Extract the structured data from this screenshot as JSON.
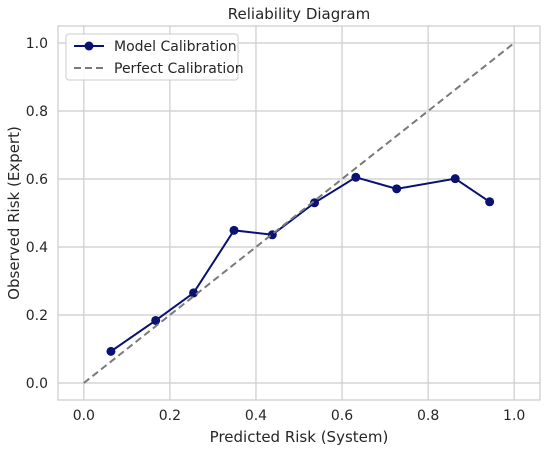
{
  "chart_data": {
    "type": "line",
    "title": "Reliability Diagram",
    "xlabel": "Predicted Risk (System)",
    "ylabel": "Observed Risk (Expert)",
    "xlim": [
      -0.06,
      1.06
    ],
    "ylim": [
      -0.05,
      1.05
    ],
    "xticks": [
      0.0,
      0.2,
      0.4,
      0.6,
      0.8,
      1.0
    ],
    "yticks": [
      0.0,
      0.2,
      0.4,
      0.6,
      0.8,
      1.0
    ],
    "xtick_labels": [
      "0.0",
      "0.2",
      "0.4",
      "0.6",
      "0.8",
      "1.0"
    ],
    "ytick_labels": [
      "0.0",
      "0.2",
      "0.4",
      "0.6",
      "0.8",
      "1.0"
    ],
    "grid": true,
    "legend_position": "top-left",
    "series": [
      {
        "name": "Model Calibration",
        "style": "solid-with-markers",
        "color": "#0a1172",
        "x": [
          0.063,
          0.167,
          0.255,
          0.349,
          0.438,
          0.536,
          0.632,
          0.727,
          0.863,
          0.943
        ],
        "y": [
          0.093,
          0.184,
          0.265,
          0.449,
          0.436,
          0.53,
          0.605,
          0.571,
          0.601,
          0.533
        ]
      },
      {
        "name": "Perfect Calibration",
        "style": "dashed",
        "color": "#7a7a7a",
        "x": [
          0.0,
          1.0
        ],
        "y": [
          0.0,
          1.0
        ]
      }
    ]
  }
}
